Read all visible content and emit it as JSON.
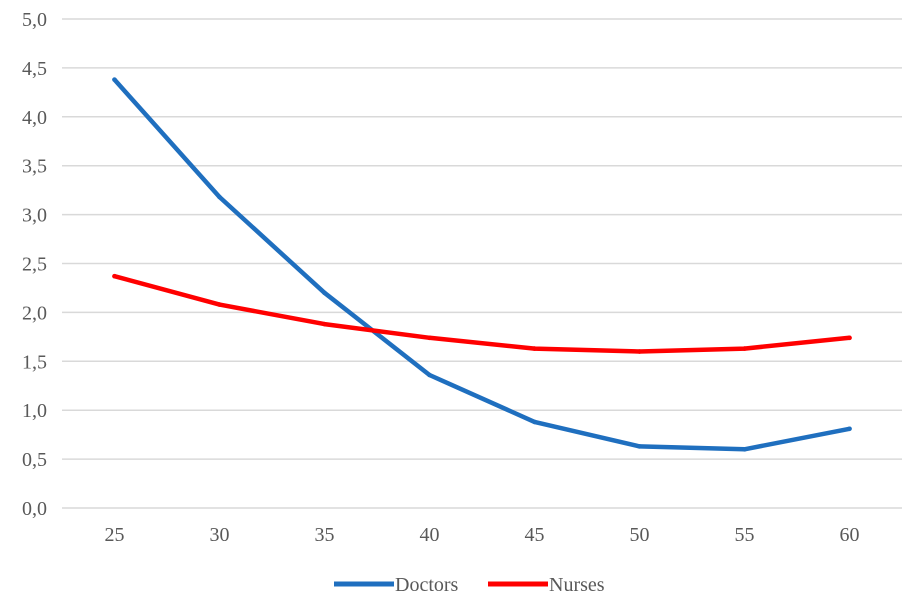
{
  "chart_data": {
    "type": "line",
    "x": [
      25,
      30,
      35,
      40,
      45,
      50,
      55,
      60
    ],
    "x_tick_labels": [
      "25",
      "30",
      "35",
      "40",
      "45",
      "50",
      "55",
      "60"
    ],
    "y_tick_labels": [
      "0,0",
      "0,5",
      "1,0",
      "1,5",
      "2,0",
      "2,5",
      "3,0",
      "3,5",
      "4,0",
      "4,5",
      "5,0"
    ],
    "ylim": [
      0,
      5
    ],
    "grid": "horizontal",
    "legend": "bottom",
    "series": [
      {
        "name": "Doctors",
        "color": "#1f6fbf",
        "values": [
          4.38,
          3.18,
          2.2,
          1.36,
          0.88,
          0.63,
          0.6,
          0.81
        ]
      },
      {
        "name": "Nurses",
        "color": "#ff0000",
        "values": [
          2.37,
          2.08,
          1.88,
          1.74,
          1.63,
          1.6,
          1.63,
          1.74
        ]
      }
    ]
  }
}
